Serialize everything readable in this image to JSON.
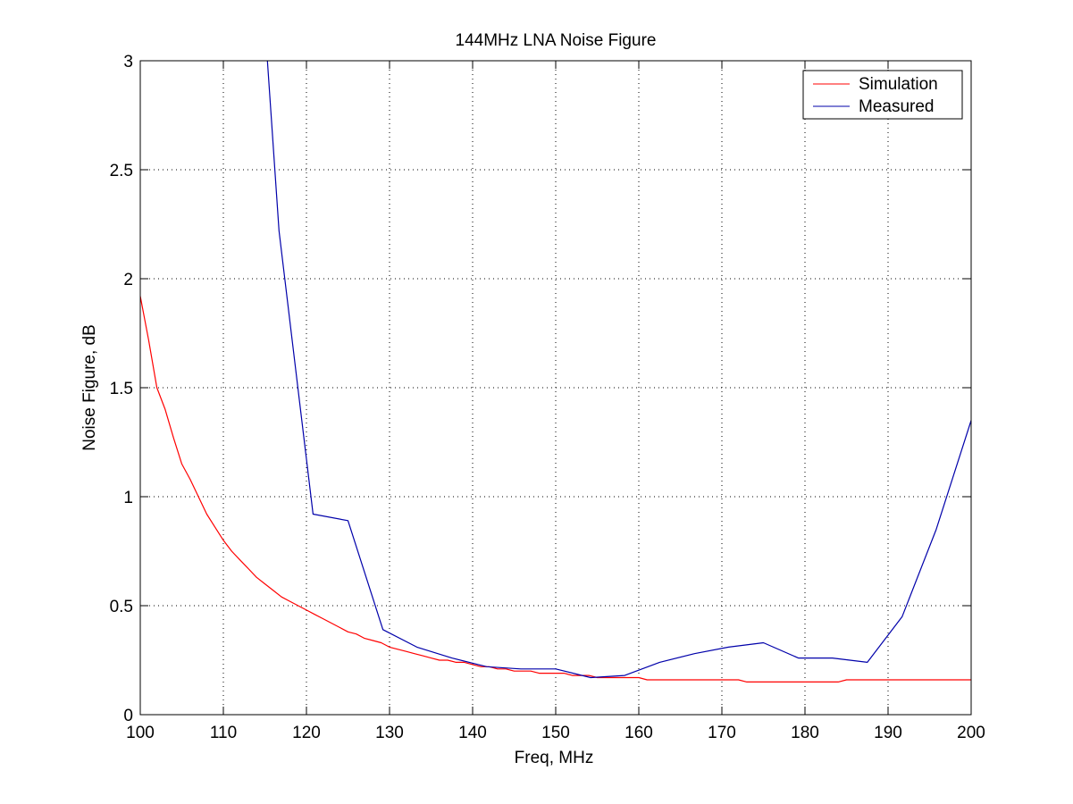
{
  "chart_data": {
    "type": "line",
    "title": "144MHz LNA Noise Figure",
    "xlabel": "Freq, MHz",
    "ylabel": "Noise Figure, dB",
    "xlim": [
      100,
      200
    ],
    "ylim": [
      0,
      3
    ],
    "xticks": [
      100,
      110,
      120,
      130,
      140,
      150,
      160,
      170,
      180,
      190,
      200
    ],
    "yticks": [
      0,
      0.5,
      1,
      1.5,
      2,
      2.5,
      3
    ],
    "xtick_labels": [
      "100",
      "110",
      "120",
      "130",
      "140",
      "150",
      "160",
      "170",
      "180",
      "190",
      "200"
    ],
    "ytick_labels": [
      "0",
      "0.5",
      "1",
      "1.5",
      "2",
      "2.5",
      "3"
    ],
    "grid": true,
    "legend_position": "top-right",
    "series": [
      {
        "name": "Simulation",
        "color": "#ff0000",
        "x": [
          100,
          101,
          102,
          103,
          104,
          105,
          106,
          107,
          108,
          109,
          110,
          111,
          112,
          113,
          114,
          115,
          116,
          117,
          118,
          119,
          120,
          121,
          122,
          123,
          124,
          125,
          126,
          127,
          128,
          129,
          130,
          131,
          132,
          133,
          134,
          135,
          136,
          137,
          138,
          139,
          140,
          141,
          142,
          143,
          144,
          145,
          146,
          147,
          148,
          149,
          150,
          151,
          152,
          153,
          154,
          155,
          156,
          157,
          158,
          159,
          160,
          161,
          162,
          163,
          164,
          165,
          166,
          167,
          168,
          169,
          170,
          171,
          172,
          173,
          174,
          175,
          176,
          177,
          178,
          179,
          180,
          181,
          182,
          183,
          184,
          185,
          186,
          187,
          188,
          189,
          190,
          195,
          200
        ],
        "y": [
          1.92,
          1.72,
          1.5,
          1.4,
          1.27,
          1.15,
          1.08,
          1.0,
          0.92,
          0.86,
          0.8,
          0.75,
          0.71,
          0.67,
          0.63,
          0.6,
          0.57,
          0.54,
          0.52,
          0.5,
          0.48,
          0.46,
          0.44,
          0.42,
          0.4,
          0.38,
          0.37,
          0.35,
          0.34,
          0.33,
          0.31,
          0.3,
          0.29,
          0.28,
          0.27,
          0.26,
          0.25,
          0.25,
          0.24,
          0.24,
          0.23,
          0.22,
          0.22,
          0.21,
          0.21,
          0.2,
          0.2,
          0.2,
          0.19,
          0.19,
          0.19,
          0.19,
          0.18,
          0.18,
          0.18,
          0.17,
          0.17,
          0.17,
          0.17,
          0.17,
          0.17,
          0.16,
          0.16,
          0.16,
          0.16,
          0.16,
          0.16,
          0.16,
          0.16,
          0.16,
          0.16,
          0.16,
          0.16,
          0.15,
          0.15,
          0.15,
          0.15,
          0.15,
          0.15,
          0.15,
          0.15,
          0.15,
          0.15,
          0.15,
          0.15,
          0.16,
          0.16,
          0.16,
          0.16,
          0.16,
          0.16,
          0.16,
          0.16
        ]
      },
      {
        "name": "Measured",
        "color": "#0000aa",
        "x": [
          115.3,
          116.7,
          120.8,
          125.0,
          129.2,
          133.3,
          137.5,
          141.7,
          145.8,
          150.0,
          154.2,
          158.3,
          162.5,
          166.7,
          170.8,
          175.0,
          179.2,
          183.3,
          187.5,
          191.7,
          195.8,
          200
        ],
        "y": [
          3.0,
          2.22,
          0.92,
          0.89,
          0.39,
          0.31,
          0.26,
          0.22,
          0.21,
          0.21,
          0.17,
          0.18,
          0.24,
          0.28,
          0.31,
          0.33,
          0.26,
          0.26,
          0.24,
          0.45,
          0.85,
          1.35
        ]
      }
    ]
  }
}
